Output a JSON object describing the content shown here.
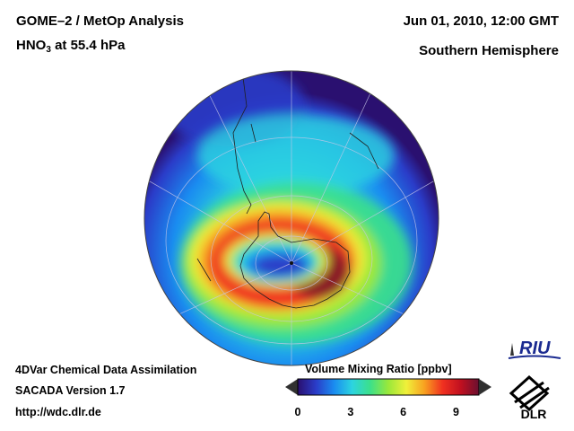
{
  "header": {
    "title": "GOME–2 / MetOp Analysis",
    "species": "HNO",
    "species_sub": "3",
    "level": "at 55.4 hPa",
    "datetime": "Jun 01, 2010, 12:00 GMT",
    "region": "Southern Hemisphere"
  },
  "footer": {
    "line1": "4DVar Chemical Data Assimilation",
    "line2": "SACADA Version 1.7",
    "url": "http://wdc.dlr.de"
  },
  "colorbar": {
    "title": "Volume Mixing Ratio [ppbv]",
    "ticks": [
      "0",
      "3",
      "6",
      "9"
    ],
    "min": 0,
    "max": 10.3
  },
  "logos": {
    "riu": "RIU",
    "dlr": "DLR"
  },
  "colors": {
    "scale": [
      "#2a0f6e",
      "#2a3cc8",
      "#1a8cf0",
      "#2cd4e0",
      "#3ce08a",
      "#9ae83a",
      "#f0f03a",
      "#f8a020",
      "#f03020",
      "#c01020",
      "#6a1030"
    ]
  }
}
